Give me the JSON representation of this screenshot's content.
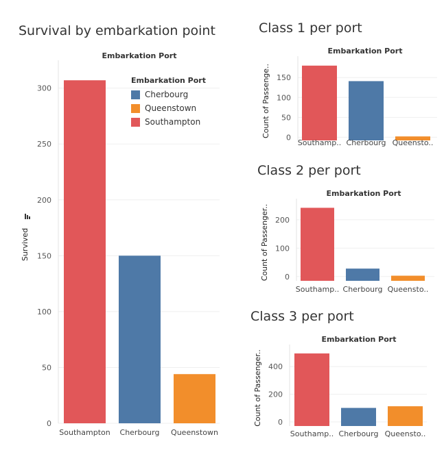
{
  "colors": {
    "Southampton": "#e15759",
    "Cherbourg": "#4e79a7",
    "Queenstown": "#f28e2b"
  },
  "chart_data": [
    {
      "id": "main",
      "type": "bar",
      "title": "Survival by embarkation point",
      "header": "Embarkation Port",
      "ylabel": "Survived",
      "categories": [
        "Southampton",
        "Cherbourg",
        "Queenstown"
      ],
      "values": [
        307,
        150,
        44
      ],
      "ylim": [
        0,
        320
      ],
      "yticks": [
        0,
        50,
        100,
        150,
        200,
        250,
        300
      ],
      "legend": {
        "title": "Embarkation Port",
        "entries": [
          "Cherbourg",
          "Queenstown",
          "Southampton"
        ],
        "placement": "top-right"
      }
    },
    {
      "id": "class1",
      "type": "bar",
      "title": "Class 1 per port",
      "header": "Embarkation Port",
      "ylabel": "Count of Passenge..",
      "categories": [
        "Southampton",
        "Cherbourg",
        "Queenstown"
      ],
      "tick_labels": [
        "Southamp..",
        "Cherbourg",
        "Queensto.."
      ],
      "values": [
        180,
        141,
        2
      ],
      "ylim": [
        -8,
        190
      ],
      "yticks": [
        0,
        50,
        100,
        150
      ]
    },
    {
      "id": "class2",
      "type": "bar",
      "title": "Class 2 per port",
      "header": "Embarkation Port",
      "ylabel": "Count of Passenger..",
      "categories": [
        "Southampton",
        "Cherbourg",
        "Queenstown"
      ],
      "tick_labels": [
        "Southamp..",
        "Cherbourg",
        "Queensto.."
      ],
      "values": [
        242,
        28,
        3
      ],
      "ylim": [
        -15,
        255
      ],
      "yticks": [
        0,
        100,
        200
      ]
    },
    {
      "id": "class3",
      "type": "bar",
      "title": "Class 3 per port",
      "header": "Embarkation Port",
      "ylabel": "Count of Passenger..",
      "categories": [
        "Southampton",
        "Cherbourg",
        "Queenstown"
      ],
      "tick_labels": [
        "Southamp..",
        "Cherbourg",
        "Queensto.."
      ],
      "values": [
        495,
        101,
        113
      ],
      "ylim": [
        -30,
        520
      ],
      "yticks": [
        0,
        200,
        400
      ]
    }
  ]
}
